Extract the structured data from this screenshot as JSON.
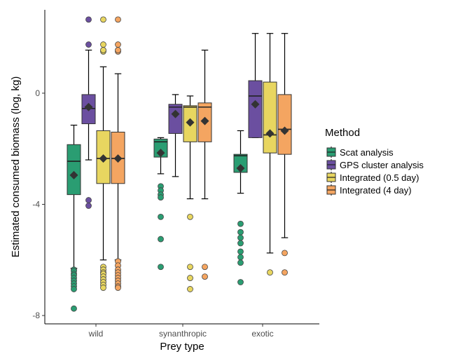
{
  "chart_data": {
    "type": "boxplot",
    "title": "",
    "xlabel": "Prey type",
    "ylabel": "Estimated consumed biomass (log, kg)",
    "ylim": [
      -8.3,
      3.0
    ],
    "yticks": [
      0,
      -4,
      -8
    ],
    "ytick_labels": [
      "0",
      "-4",
      "-8"
    ],
    "categories": [
      "wild",
      "synanthropic",
      "exotic"
    ],
    "grid": false,
    "legend": {
      "title": "Method",
      "position": "right"
    },
    "series": [
      {
        "name": "Scat analysis",
        "color": "#2a9d72",
        "boxes": [
          {
            "whisker_low": -6.3,
            "q1": -3.65,
            "median": -2.45,
            "q3": -1.85,
            "whisker_high": -1.15,
            "mean": -2.95,
            "outliers": [
              -6.35,
              -6.4,
              -6.5,
              -6.55,
              -6.65,
              -6.75,
              -6.85,
              -6.95,
              -7.05,
              -7.75
            ]
          },
          {
            "whisker_low": -2.9,
            "q1": -2.3,
            "median": -1.75,
            "q3": -1.65,
            "whisker_high": -1.6,
            "mean": -2.15,
            "outliers": [
              -3.35,
              -3.5,
              -3.65,
              -3.75,
              -4.45,
              -5.25,
              -6.25
            ]
          },
          {
            "whisker_low": -3.6,
            "q1": -2.85,
            "median": -2.25,
            "q3": -2.2,
            "whisker_high": -1.35,
            "mean": -2.7,
            "outliers": [
              -4.7,
              -5.0,
              -5.2,
              -5.4,
              -5.7,
              -5.9,
              -6.1,
              -6.8
            ]
          }
        ]
      },
      {
        "name": "GPS cluster analysis",
        "color": "#6b4fa0",
        "boxes": [
          {
            "whisker_low": -2.4,
            "q1": -1.1,
            "median": -0.55,
            "q3": -0.05,
            "whisker_high": 1.55,
            "mean": -0.5,
            "outliers": [
              1.75,
              2.65,
              -3.85,
              -4.05
            ]
          },
          {
            "whisker_low": -3.0,
            "q1": -1.45,
            "median": -0.5,
            "q3": -0.4,
            "whisker_high": -0.05,
            "mean": -0.75,
            "outliers": []
          },
          {
            "whisker_low": -1.6,
            "q1": -1.6,
            "median": -0.1,
            "q3": 0.45,
            "whisker_high": 2.15,
            "mean": -0.4,
            "outliers": []
          }
        ]
      },
      {
        "name": "Integrated (0.5 day)",
        "color": "#e8d660",
        "boxes": [
          {
            "whisker_low": -6.0,
            "q1": -3.25,
            "median": -2.35,
            "q3": -1.35,
            "whisker_high": 0.95,
            "mean": -2.35,
            "outliers": [
              1.5,
              1.55,
              1.75,
              2.65,
              -6.25,
              -6.35,
              -6.45,
              -6.5,
              -6.6,
              -6.7,
              -6.8,
              -6.9,
              -7.0
            ]
          },
          {
            "whisker_low": -3.8,
            "q1": -1.75,
            "median": -0.5,
            "q3": -0.45,
            "whisker_high": -0.1,
            "mean": -1.05,
            "outliers": [
              -4.45,
              -6.25,
              -6.65,
              -7.05
            ]
          },
          {
            "whisker_low": -5.75,
            "q1": -2.15,
            "median": -1.5,
            "q3": 0.4,
            "whisker_high": 2.15,
            "mean": -1.45,
            "outliers": [
              -6.45
            ]
          }
        ]
      },
      {
        "name": "Integrated (4 day)",
        "color": "#f4a561",
        "boxes": [
          {
            "whisker_low": -6.0,
            "q1": -3.25,
            "median": -2.35,
            "q3": -1.4,
            "whisker_high": 0.7,
            "mean": -2.35,
            "outliers": [
              1.5,
              1.55,
              1.75,
              2.65,
              -6.05,
              -6.2,
              -6.35,
              -6.45,
              -6.55,
              -6.65,
              -6.75,
              -6.85,
              -6.95,
              -7.0
            ]
          },
          {
            "whisker_low": -3.8,
            "q1": -1.75,
            "median": -0.5,
            "q3": -0.35,
            "whisker_high": 1.55,
            "mean": -1.0,
            "outliers": [
              -6.25,
              -6.6
            ]
          },
          {
            "whisker_low": -5.2,
            "q1": -2.2,
            "median": -1.3,
            "q3": -0.05,
            "whisker_high": 2.15,
            "mean": -1.35,
            "outliers": [
              -5.75,
              -6.45
            ]
          }
        ]
      }
    ]
  }
}
